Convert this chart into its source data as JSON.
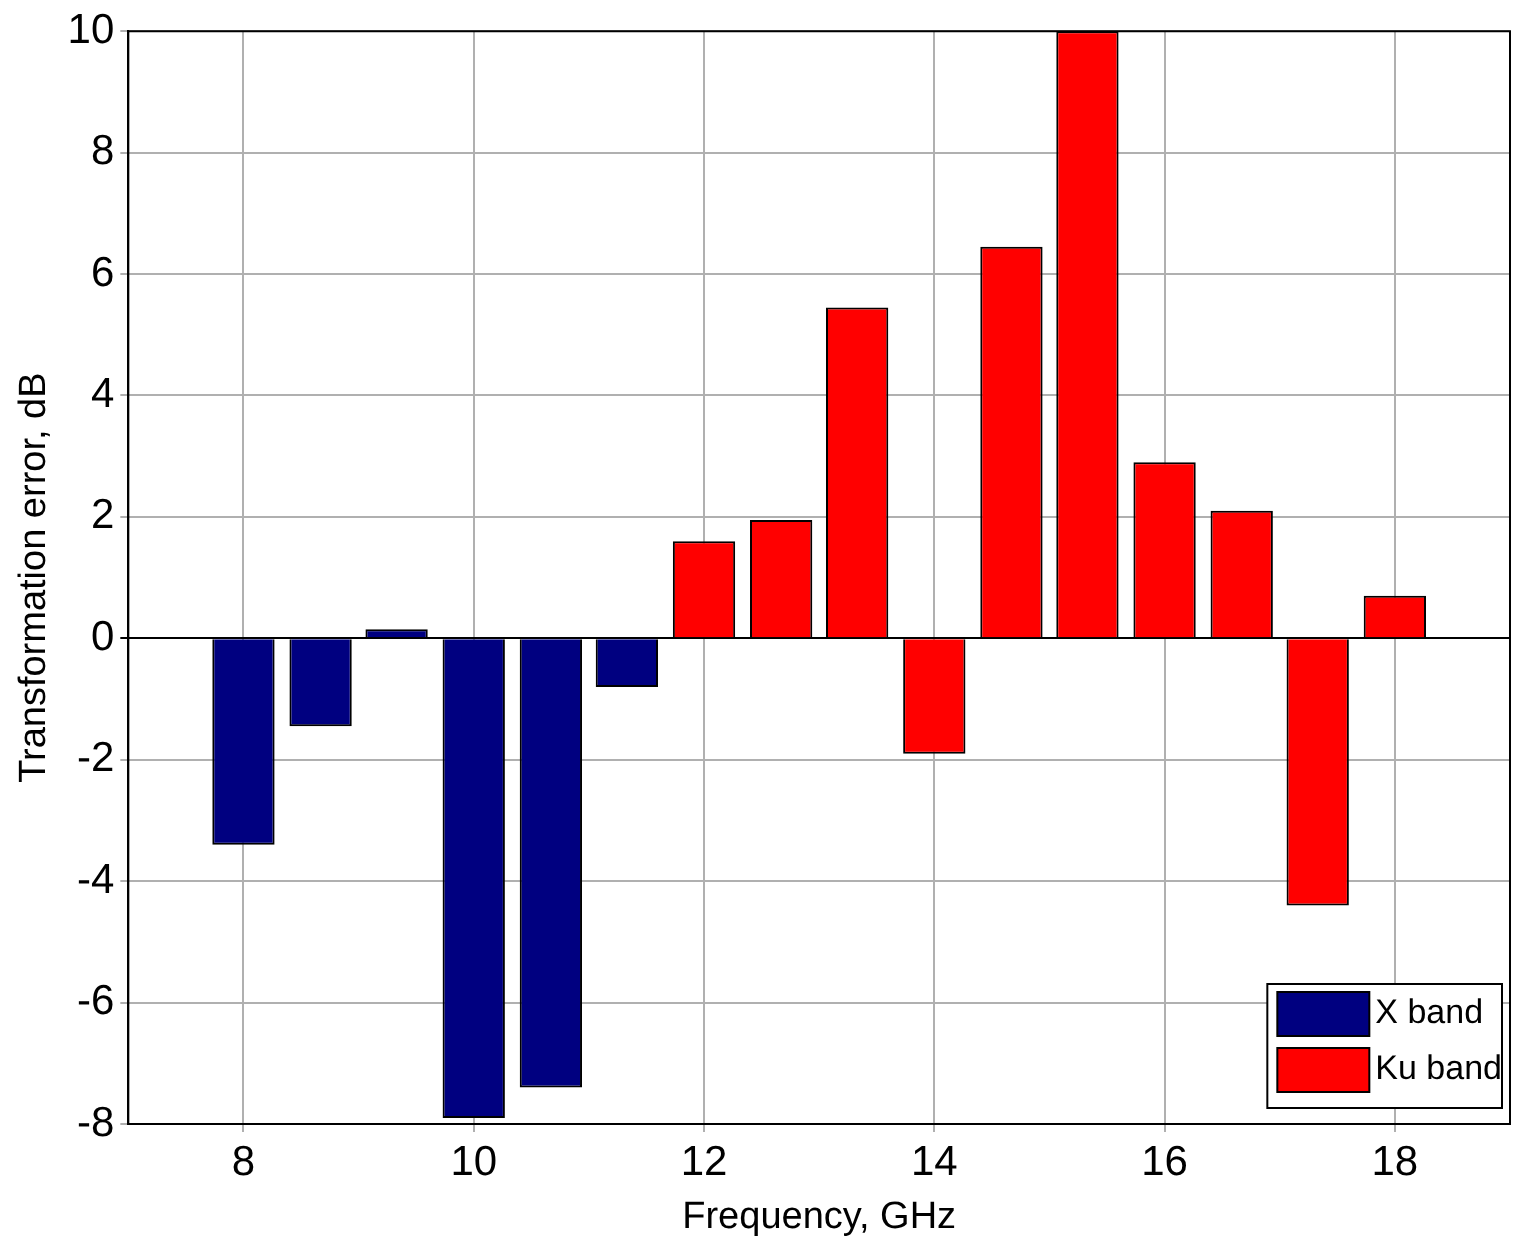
{
  "chart_data": {
    "type": "bar",
    "xlabel": "Frequency, GHz",
    "ylabel": "Transformation error, dB",
    "series": [
      {
        "name": "X band",
        "color": "#000080",
        "x": [
          8,
          8.67,
          9.33,
          10,
          10.67,
          11.33
        ],
        "values": [
          -3.4,
          -1.45,
          0.15,
          -7.9,
          -7.4,
          -0.8
        ]
      },
      {
        "name": "Ku band",
        "color": "#ff0000",
        "x": [
          12,
          12.67,
          13.33,
          14,
          14.67,
          15.33,
          16,
          16.67,
          17.33,
          18
        ],
        "values": [
          1.6,
          1.95,
          5.45,
          -1.9,
          6.45,
          10,
          2.9,
          2.1,
          -4.4,
          0.7
        ]
      }
    ],
    "xlim": [
      7,
      19
    ],
    "xticks": [
      8,
      10,
      12,
      14,
      16,
      18
    ],
    "ylim": [
      -8,
      10
    ],
    "yticks": [
      -8,
      -6,
      -4,
      -2,
      0,
      2,
      4,
      6,
      8,
      10
    ],
    "grid": true,
    "legend": "bottom right"
  }
}
